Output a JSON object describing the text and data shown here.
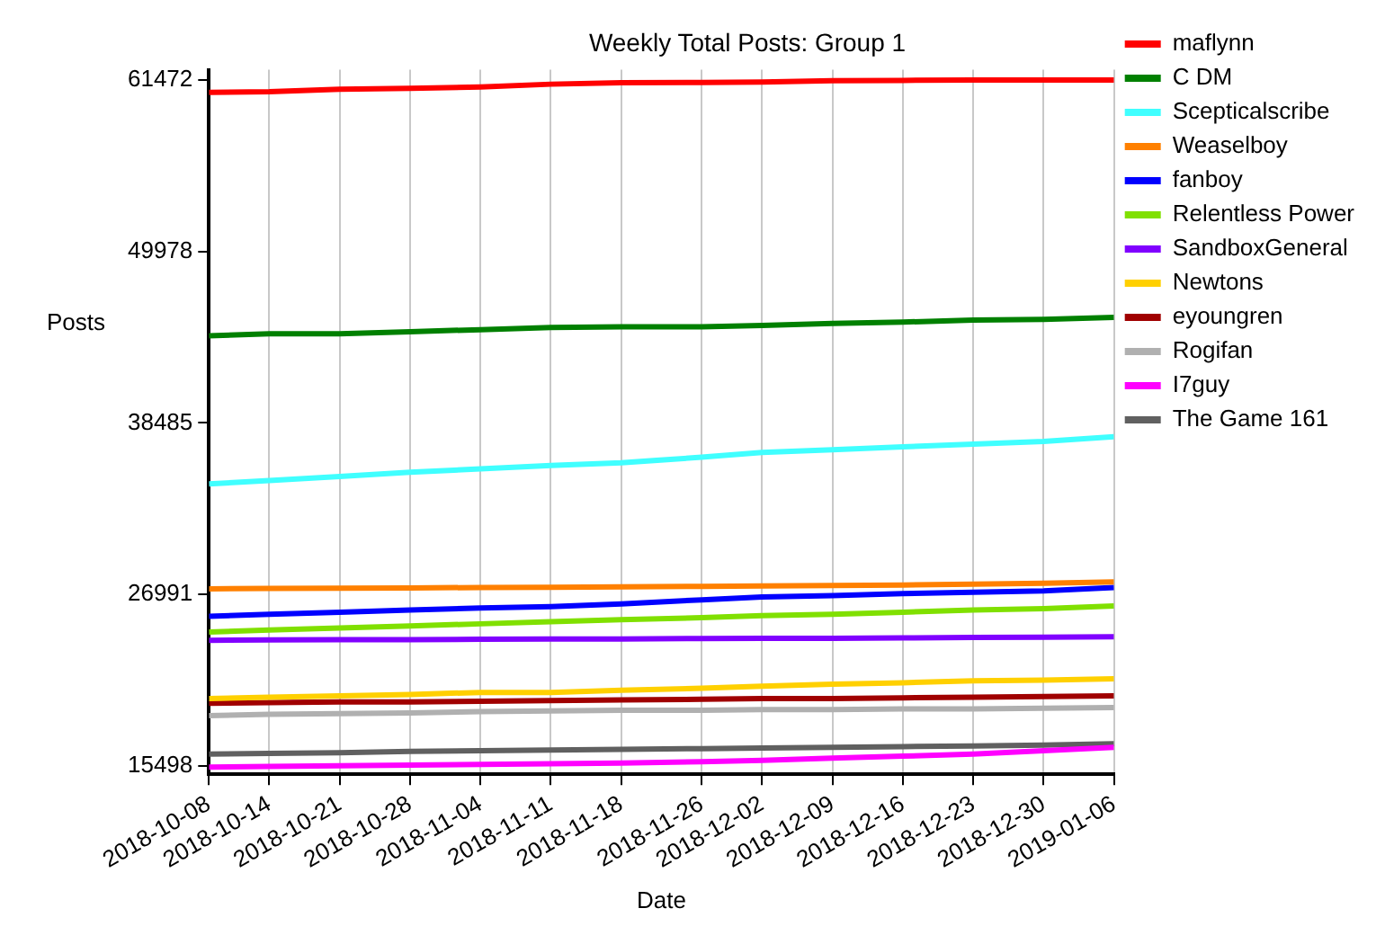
{
  "chart_data": {
    "type": "line",
    "title": "Weekly Total Posts: Group 1",
    "xlabel": "Date",
    "ylabel": "Posts",
    "x": [
      "2018-10-08",
      "2018-10-14",
      "2018-10-21",
      "2018-10-28",
      "2018-11-04",
      "2018-11-11",
      "2018-11-18",
      "2018-11-26",
      "2018-12-02",
      "2018-12-09",
      "2018-12-16",
      "2018-12-23",
      "2018-12-30",
      "2019-01-06"
    ],
    "xlim": [
      "2018-10-08",
      "2019-01-06"
    ],
    "xticks": [
      "2018-10-08",
      "2018-10-14",
      "2018-10-21",
      "2018-10-28",
      "2018-11-04",
      "2018-11-11",
      "2018-11-18",
      "2018-11-26",
      "2018-12-02",
      "2018-12-09",
      "2018-12-16",
      "2018-12-23",
      "2018-12-30",
      "2019-01-06"
    ],
    "ylim": [
      14923,
      62162
    ],
    "yticks": [
      15498,
      26991,
      38485,
      49978,
      61472
    ],
    "grid": "x",
    "legend": "top right",
    "marker": "none",
    "line_style": "solid",
    "series": [
      {
        "name": "maflynn",
        "color": "#ff0000",
        "values": [
          60644,
          60690,
          60863,
          60920,
          61012,
          61196,
          61288,
          61311,
          61334,
          61426,
          61449,
          61472,
          61472,
          61472
        ]
      },
      {
        "name": "C DM",
        "color": "#008000",
        "values": [
          44324,
          44462,
          44462,
          44600,
          44738,
          44876,
          44922,
          44922,
          45013,
          45151,
          45243,
          45381,
          45427,
          45565
        ]
      },
      {
        "name": "Scepticalscribe",
        "color": "#40ffff",
        "values": [
          34393,
          34623,
          34899,
          35175,
          35405,
          35635,
          35818,
          36186,
          36508,
          36692,
          36876,
          37060,
          37244,
          37566
        ]
      },
      {
        "name": "Weaselboy",
        "color": "#ff8000",
        "values": [
          27359,
          27380,
          27400,
          27420,
          27450,
          27470,
          27500,
          27520,
          27550,
          27580,
          27620,
          27680,
          27740,
          27819
        ]
      },
      {
        "name": "fanboy",
        "color": "#0000ff",
        "values": [
          25520,
          25658,
          25796,
          25934,
          26072,
          26164,
          26348,
          26624,
          26808,
          26900,
          27037,
          27129,
          27221,
          27451
        ]
      },
      {
        "name": "Relentless Power",
        "color": "#80e000",
        "values": [
          24463,
          24601,
          24738,
          24876,
          25014,
          25152,
          25290,
          25428,
          25566,
          25658,
          25796,
          25934,
          26026,
          26210
        ]
      },
      {
        "name": "SandboxGeneral",
        "color": "#8000ff",
        "values": [
          23911,
          23934,
          23957,
          23957,
          23980,
          24003,
          24003,
          24026,
          24049,
          24049,
          24072,
          24095,
          24118,
          24141
        ]
      },
      {
        "name": "Newtons",
        "color": "#ffd000",
        "values": [
          20003,
          20095,
          20187,
          20279,
          20417,
          20417,
          20555,
          20693,
          20831,
          20969,
          21061,
          21199,
          21244,
          21336
        ]
      },
      {
        "name": "eyoungren",
        "color": "#a00000",
        "values": [
          19681,
          19727,
          19773,
          19773,
          19819,
          19865,
          19911,
          19957,
          20003,
          20003,
          20049,
          20095,
          20141,
          20187
        ]
      },
      {
        "name": "Rogifan",
        "color": "#b0b0b0",
        "values": [
          18854,
          18946,
          18992,
          19038,
          19130,
          19176,
          19222,
          19222,
          19268,
          19268,
          19314,
          19314,
          19360,
          19406
        ]
      },
      {
        "name": "I7guy",
        "color": "#ff00ff",
        "values": [
          15406,
          15452,
          15497,
          15543,
          15589,
          15635,
          15681,
          15773,
          15865,
          16003,
          16141,
          16279,
          16509,
          16739
        ]
      },
      {
        "name": "The Game 161",
        "color": "#606060",
        "values": [
          16279,
          16325,
          16371,
          16463,
          16509,
          16555,
          16601,
          16647,
          16693,
          16739,
          16785,
          16831,
          16877,
          16969
        ]
      }
    ]
  }
}
